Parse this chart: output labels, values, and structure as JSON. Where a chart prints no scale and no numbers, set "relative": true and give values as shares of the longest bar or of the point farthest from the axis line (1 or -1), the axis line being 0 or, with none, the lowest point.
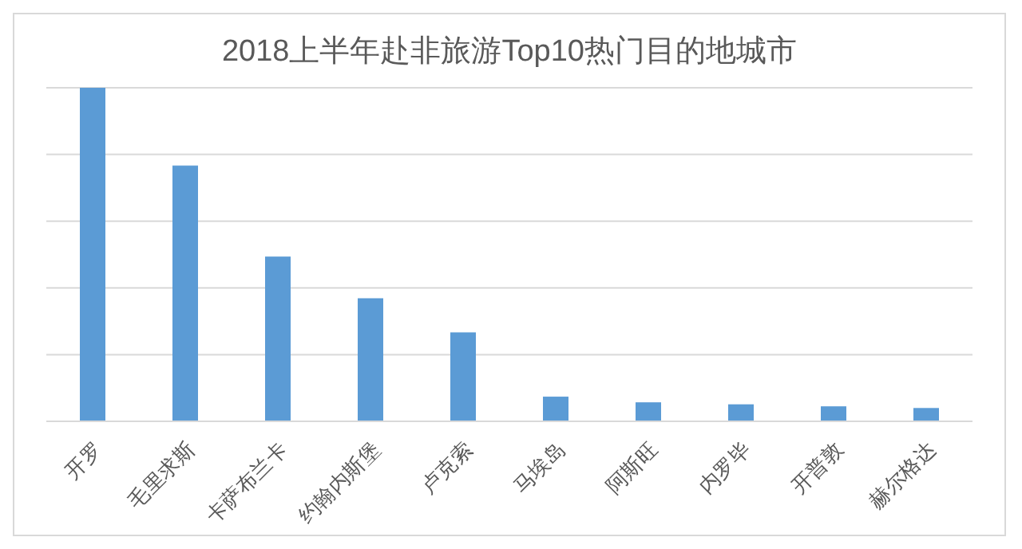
{
  "chart_data": {
    "type": "bar",
    "title": "2018上半年赴非旅游Top10热门目的地城市",
    "categories": [
      "开罗",
      "毛里求斯",
      "卡萨布兰卡",
      "约翰内斯堡",
      "卢克索",
      "马埃岛",
      "阿斯旺",
      "内罗毕",
      "开普敦",
      "赫尔格达"
    ],
    "values": [
      1,
      0.767,
      0.494,
      0.369,
      0.267,
      0.074,
      0.057,
      0.051,
      0.045,
      0.04
    ],
    "color": "#5b9bd5",
    "relative": true,
    "grid": "y"
  }
}
